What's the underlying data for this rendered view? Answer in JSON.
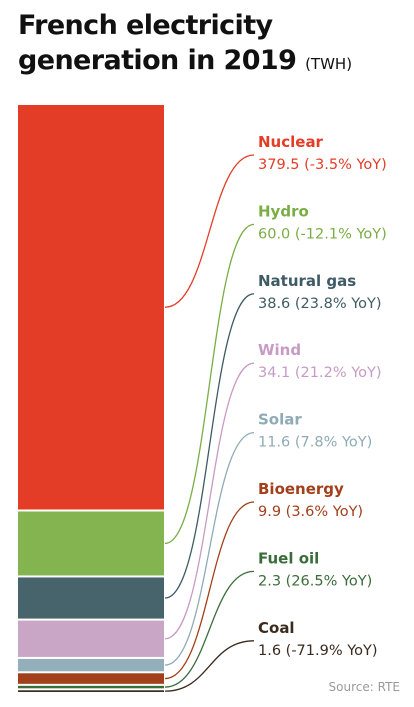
{
  "header": {
    "title_line1": "French electricity",
    "title_line2": "generation in 2019",
    "unit": "(TWH)"
  },
  "source": "Source: RTE",
  "chart_data": {
    "type": "stacked-bar",
    "title": "French electricity generation in 2019",
    "unit": "TWH",
    "series": [
      {
        "name": "Nuclear",
        "value": 379.5,
        "yoy": "-3.5% YoY",
        "color": "#e43d27",
        "text_color": "#e43d27"
      },
      {
        "name": "Hydro",
        "value": 60.0,
        "yoy": "-12.1% YoY",
        "color": "#84b450",
        "text_color": "#7aae45"
      },
      {
        "name": "Natural gas",
        "value": 38.6,
        "yoy": "23.8% YoY",
        "color": "#47636b",
        "text_color": "#3f5b64"
      },
      {
        "name": "Wind",
        "value": 34.1,
        "yoy": "21.2% YoY",
        "color": "#c9a6c6",
        "text_color": "#c79bc4"
      },
      {
        "name": "Solar",
        "value": 11.6,
        "yoy": "7.8% YoY",
        "color": "#93b0ba",
        "text_color": "#8eabb6"
      },
      {
        "name": "Bioenergy",
        "value": 9.9,
        "yoy": "3.6% YoY",
        "color": "#a2401b",
        "text_color": "#a2401b"
      },
      {
        "name": "Fuel oil",
        "value": 2.3,
        "yoy": "26.5% YoY",
        "color": "#3c6c3c",
        "text_color": "#3c6c3c"
      },
      {
        "name": "Coal",
        "value": 1.6,
        "yoy": "-71.9% YoY",
        "color": "#3b2a1e",
        "text_color": "#3b2a1e"
      }
    ]
  }
}
